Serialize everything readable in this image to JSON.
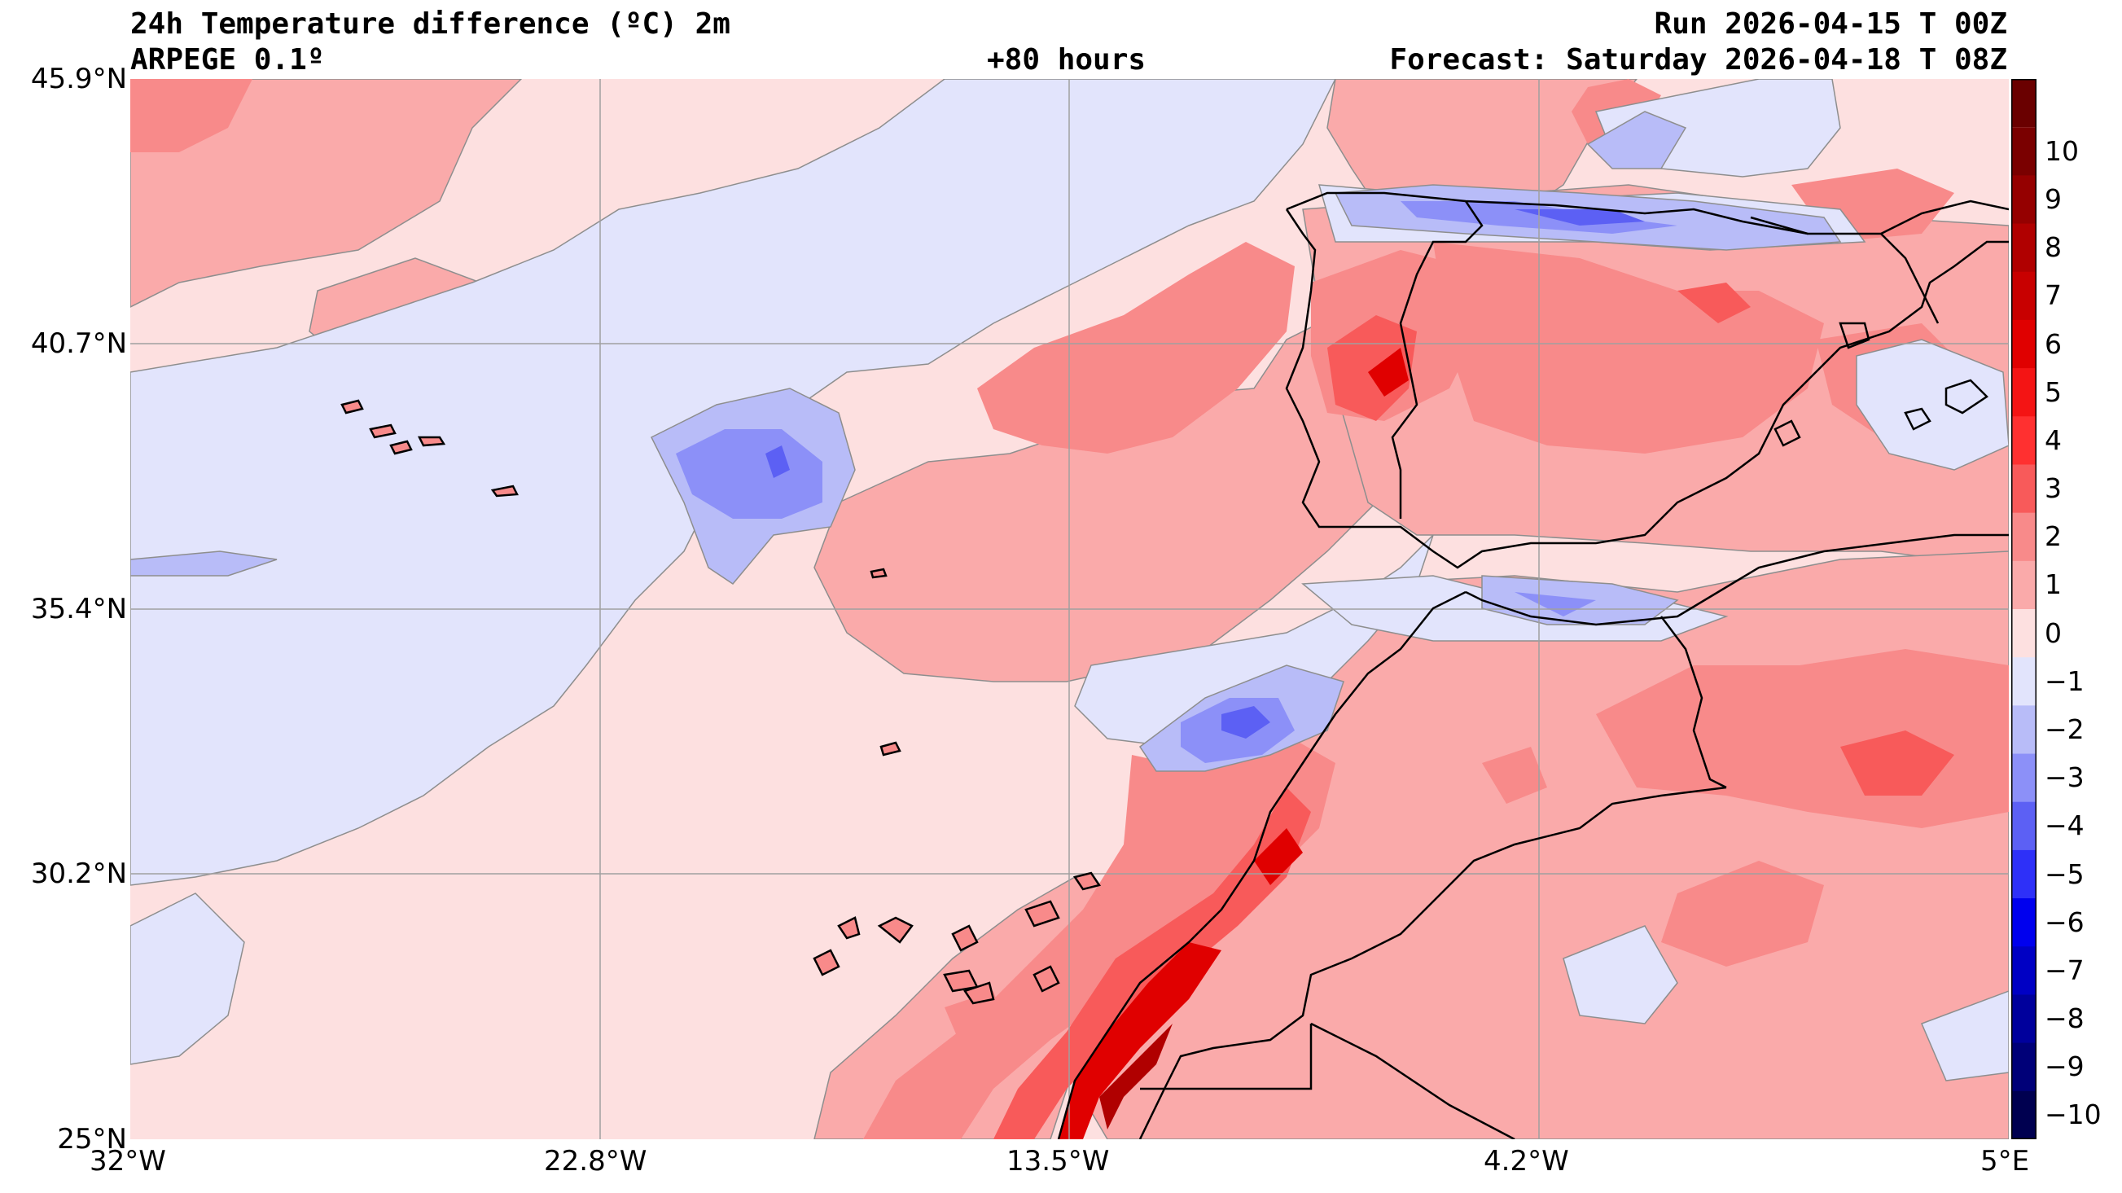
{
  "header": {
    "title": "24h Temperature difference (ºC) 2m",
    "model": "ARPEGE 0.1º",
    "lead_time": "+80 hours",
    "run": "Run 2026-04-15 T 00Z",
    "forecast": "Forecast: Saturday 2026-04-18 T 08Z"
  },
  "map": {
    "lat_labels": [
      "45.9°N",
      "40.7°N",
      "35.4°N",
      "30.2°N",
      "25°N"
    ],
    "lon_labels": [
      "32°W",
      "22.8°W",
      "13.5°W",
      "4.2°W",
      "5°E"
    ],
    "gridlines": true
  },
  "colorbar": {
    "labels": [
      "10",
      "9",
      "8",
      "7",
      "6",
      "5",
      "4",
      "3",
      "2",
      "1",
      "0",
      "−1",
      "−2",
      "−3",
      "−4",
      "−5",
      "−6",
      "−7",
      "−8",
      "−9",
      "−10"
    ],
    "colors": [
      "#7a0000",
      "#950000",
      "#b00000",
      "#c80000",
      "#e00000",
      "#f41414",
      "#ff3030",
      "#f85a5a",
      "#f88a8a",
      "#faaaaa",
      "#fde0e0",
      "#e2e4fc",
      "#b8bcf8",
      "#8c90f8",
      "#5c60f4",
      "#2e30f8",
      "#0000ee",
      "#0000c4",
      "#00009c",
      "#000078",
      "#000050"
    ]
  }
}
